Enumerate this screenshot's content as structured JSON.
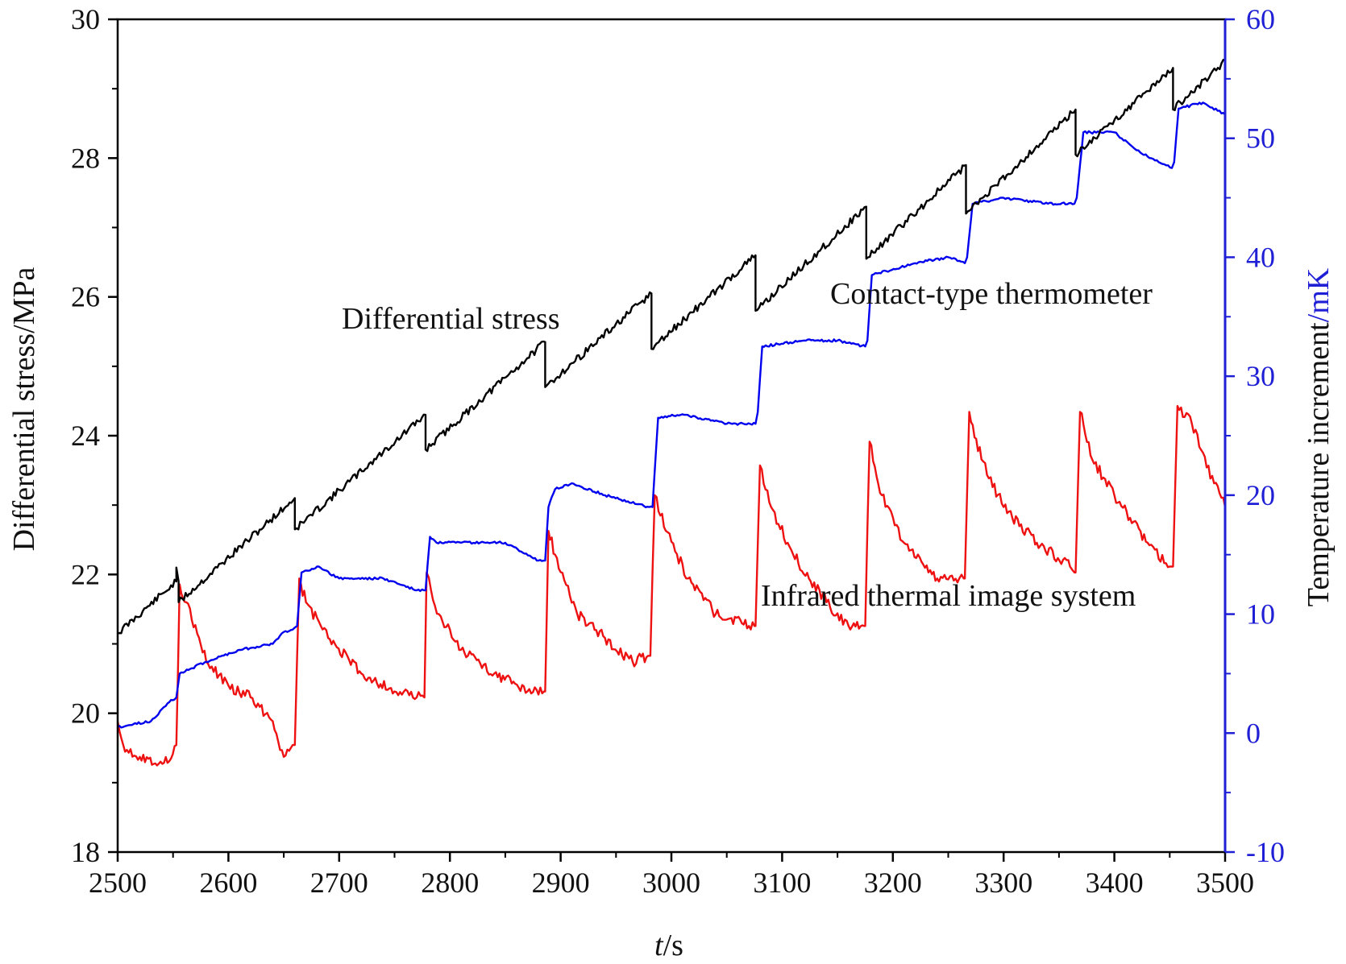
{
  "chart_data": {
    "type": "line",
    "title": "",
    "xlabel_italic": "t",
    "xlabel_unit": "/s",
    "ylabel_left": "Differential stress/MPa",
    "ylabel_right_main": "Temperature increment",
    "ylabel_right_unit": "/mK",
    "xlim": [
      2500,
      3500
    ],
    "ylim_left": [
      18,
      30
    ],
    "ylim_right": [
      -10,
      60
    ],
    "x_ticks": [
      2500,
      2600,
      2700,
      2800,
      2900,
      3000,
      3100,
      3200,
      3300,
      3400,
      3500
    ],
    "y_left_ticks": [
      18,
      20,
      22,
      24,
      26,
      28,
      30
    ],
    "y_right_ticks": [
      -10,
      0,
      10,
      20,
      30,
      40,
      50,
      60
    ],
    "y_right_tick_labels": [
      "-10",
      "0",
      "10",
      "20",
      "30",
      "40",
      "50",
      "60"
    ],
    "colors": {
      "stress": "#000000",
      "contact": "#0000ee",
      "infrared": "#ee1111",
      "right_axis": "#1f1fd6",
      "frame": "#000000"
    },
    "annotations": [
      {
        "text": "Differential stress",
        "series": "Differential stress"
      },
      {
        "text": "Contact-type thermometer",
        "series": "Contact-type thermometer"
      },
      {
        "text": "Infrared thermal image system",
        "series": "Infrared thermal image system"
      }
    ],
    "series": [
      {
        "name": "Differential stress",
        "axis": "left",
        "color": "#000000",
        "x": [
          2500,
          2553,
          2553,
          2555,
          2555,
          2660,
          2660,
          2778,
          2778,
          2886,
          2886,
          2982,
          2982,
          3076,
          3076,
          3176,
          3176,
          3266,
          3266,
          3365,
          3365,
          3453,
          3453,
          3500
        ],
        "y": [
          21.15,
          21.9,
          22.1,
          21.9,
          21.6,
          23.1,
          22.65,
          24.3,
          23.8,
          25.35,
          24.7,
          26.05,
          25.25,
          26.6,
          25.8,
          27.3,
          26.55,
          27.9,
          27.2,
          28.7,
          28.05,
          29.3,
          28.7,
          29.4
        ]
      },
      {
        "name": "Contact-type thermometer",
        "axis": "right",
        "color": "#0000ee",
        "x": [
          2500,
          2530,
          2545,
          2553,
          2556,
          2580,
          2610,
          2640,
          2650,
          2658,
          2662,
          2666,
          2680,
          2700,
          2740,
          2770,
          2778,
          2782,
          2788,
          2810,
          2850,
          2880,
          2886,
          2889,
          2895,
          2910,
          2940,
          2980,
          2983,
          2988,
          3010,
          3050,
          3076,
          3078,
          3082,
          3120,
          3150,
          3175,
          3177,
          3181,
          3220,
          3250,
          3265,
          3267,
          3272,
          3300,
          3340,
          3364,
          3366,
          3372,
          3400,
          3420,
          3440,
          3452,
          3454,
          3458,
          3480,
          3500
        ],
        "y": [
          0.5,
          1,
          2.5,
          3,
          5,
          6,
          7,
          7.5,
          8.5,
          8.7,
          9,
          13.5,
          14,
          13,
          13,
          12,
          12,
          16.5,
          16,
          16,
          16,
          14.5,
          14.5,
          19,
          20.5,
          21,
          20,
          19,
          19,
          26.5,
          26.8,
          26,
          26,
          27,
          32.5,
          33,
          33,
          32.5,
          33,
          38.5,
          39.5,
          40,
          39.5,
          40,
          44.5,
          45,
          44.5,
          44.5,
          45,
          50.5,
          50.5,
          49,
          48,
          47.5,
          48,
          52.5,
          53,
          52
        ]
      },
      {
        "name": "Infrared thermal image system",
        "axis": "right",
        "color": "#ee1111",
        "x": [
          2500,
          2505,
          2520,
          2545,
          2553,
          2556,
          2562,
          2580,
          2600,
          2620,
          2640,
          2650,
          2658,
          2660,
          2664,
          2670,
          2690,
          2720,
          2750,
          2770,
          2777,
          2779,
          2783,
          2790,
          2810,
          2840,
          2870,
          2885,
          2886,
          2889,
          2895,
          2915,
          2940,
          2965,
          2979,
          2981,
          2985,
          2995,
          3015,
          3040,
          3070,
          3075,
          3076,
          3080,
          3090,
          3110,
          3140,
          3160,
          3174,
          3175,
          3179,
          3190,
          3210,
          3240,
          3260,
          3264,
          3265,
          3269,
          3280,
          3300,
          3330,
          3360,
          3364,
          3365,
          3369,
          3380,
          3400,
          3430,
          3450,
          3452,
          3453,
          3457,
          3470,
          3490,
          3500
        ],
        "y": [
          1,
          -1,
          -2,
          -2.5,
          -1,
          12.5,
          11,
          6,
          4,
          3,
          1,
          -2,
          -1,
          -1,
          13,
          11,
          8,
          5,
          3.5,
          3,
          3,
          13.5,
          12,
          10,
          7,
          5,
          3.5,
          3.5,
          3.5,
          17,
          15,
          10,
          8,
          6,
          6.5,
          6.5,
          20,
          17,
          13,
          10,
          9,
          9,
          9,
          22.5,
          19,
          15,
          11,
          9,
          9,
          9,
          24.5,
          20,
          16,
          13,
          13,
          13,
          13,
          27,
          23,
          19,
          16,
          14,
          13.5,
          13.5,
          27,
          23,
          20,
          16,
          14,
          14,
          14,
          27.5,
          26,
          21,
          19
        ]
      }
    ]
  }
}
